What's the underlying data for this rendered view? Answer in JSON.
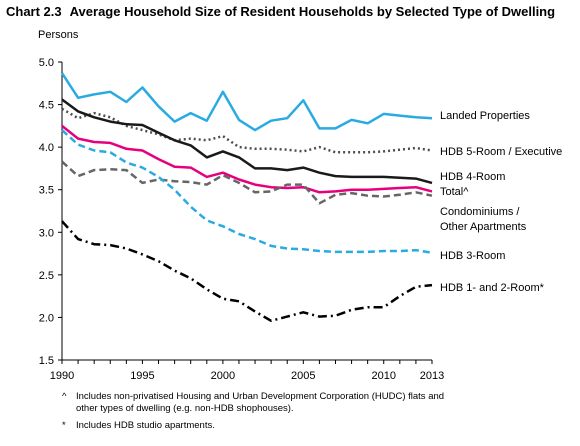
{
  "header": {
    "number": "Chart 2.3",
    "title": "Average Household Size of Resident Households by Selected Type of Dwelling"
  },
  "chart_data": {
    "type": "line",
    "title": "Average Household Size of Resident Households by Selected Type of Dwelling",
    "ylabel": "Persons",
    "xlabel": "",
    "ylim": [
      1.5,
      5.0
    ],
    "yticks": [
      "1.5",
      "2.0",
      "2.5",
      "3.0",
      "3.5",
      "4.0",
      "4.5",
      "5.0"
    ],
    "xticks": [
      "1990",
      "1995",
      "2000",
      "2005",
      "2010",
      "2013"
    ],
    "grid": false,
    "legend": "direct labels at right end of lines",
    "x": [
      1990,
      1991,
      1992,
      1993,
      1994,
      1995,
      1996,
      1997,
      1998,
      1999,
      2000,
      2001,
      2002,
      2003,
      2004,
      2005,
      2006,
      2007,
      2008,
      2009,
      2010,
      2011,
      2012,
      2013
    ],
    "series": [
      {
        "name": "Landed Properties",
        "color": "#29abe2",
        "dash": "solid",
        "values": [
          4.87,
          4.58,
          4.62,
          4.65,
          4.53,
          4.7,
          4.48,
          4.3,
          4.4,
          4.31,
          4.65,
          4.32,
          4.2,
          4.31,
          4.34,
          4.55,
          4.22,
          4.22,
          4.32,
          4.28,
          4.39,
          4.37,
          4.35,
          4.34
        ]
      },
      {
        "name": "HDB 5-Room / Executive",
        "color": "#4d4d4d",
        "dash": "dotted",
        "values": [
          4.45,
          4.34,
          4.4,
          4.35,
          4.25,
          4.2,
          4.15,
          4.08,
          4.1,
          4.08,
          4.13,
          4.0,
          3.98,
          3.98,
          3.97,
          3.95,
          4.0,
          3.94,
          3.94,
          3.94,
          3.95,
          3.97,
          3.99,
          3.96
        ]
      },
      {
        "name": "HDB 4-Room",
        "color": "#1a1a1a",
        "dash": "solid",
        "values": [
          4.56,
          4.42,
          4.35,
          4.3,
          4.27,
          4.26,
          4.17,
          4.08,
          4.02,
          3.88,
          3.95,
          3.88,
          3.75,
          3.75,
          3.73,
          3.76,
          3.7,
          3.66,
          3.65,
          3.65,
          3.65,
          3.64,
          3.63,
          3.58
        ]
      },
      {
        "name": "Total^",
        "color": "#e6007e",
        "dash": "solid",
        "values": [
          4.25,
          4.1,
          4.06,
          4.05,
          3.98,
          3.96,
          3.86,
          3.77,
          3.76,
          3.65,
          3.7,
          3.62,
          3.56,
          3.53,
          3.52,
          3.53,
          3.47,
          3.48,
          3.5,
          3.5,
          3.51,
          3.52,
          3.53,
          3.48
        ]
      },
      {
        "name": "Condominiums / Other Apartments",
        "color": "#666666",
        "dash": "dashed",
        "values": [
          3.83,
          3.66,
          3.73,
          3.74,
          3.73,
          3.58,
          3.62,
          3.6,
          3.59,
          3.56,
          3.67,
          3.58,
          3.47,
          3.48,
          3.56,
          3.56,
          3.34,
          3.44,
          3.46,
          3.43,
          3.42,
          3.44,
          3.47,
          3.43
        ]
      },
      {
        "name": "HDB 3-Room",
        "color": "#29abe2",
        "dash": "dashed",
        "values": [
          4.2,
          4.03,
          3.96,
          3.94,
          3.82,
          3.76,
          3.65,
          3.5,
          3.3,
          3.14,
          3.07,
          2.98,
          2.92,
          2.84,
          2.81,
          2.8,
          2.78,
          2.77,
          2.77,
          2.77,
          2.78,
          2.78,
          2.79,
          2.76
        ]
      },
      {
        "name": "HDB 1- and 2-Room*",
        "color": "#000000",
        "dash": "dashdot",
        "values": [
          3.13,
          2.92,
          2.86,
          2.85,
          2.81,
          2.74,
          2.66,
          2.55,
          2.46,
          2.33,
          2.22,
          2.19,
          2.07,
          1.96,
          2.01,
          2.06,
          2.01,
          2.02,
          2.09,
          2.12,
          2.12,
          2.25,
          2.36,
          2.38
        ]
      }
    ]
  },
  "labels": [
    {
      "text": "Landed Properties",
      "series": 0
    },
    {
      "text": "HDB 5-Room / Executive",
      "series": 1
    },
    {
      "text": "HDB 4-Room",
      "series": 2
    },
    {
      "text": "Total^",
      "series": 3
    },
    {
      "text": "Condominiums /",
      "series": 4
    },
    {
      "text": "Other Apartments",
      "series": 4
    },
    {
      "text": "HDB 3-Room",
      "series": 5
    },
    {
      "text": "HDB 1- and 2-Room*",
      "series": 6
    }
  ],
  "footnotes": [
    {
      "mark": "^",
      "text": "Includes non-privatised Housing and Urban Development Corporation (HUDC) flats and other types of dwelling (e.g. non-HDB shophouses)."
    },
    {
      "mark": "*",
      "text": "Includes HDB studio apartments."
    }
  ]
}
